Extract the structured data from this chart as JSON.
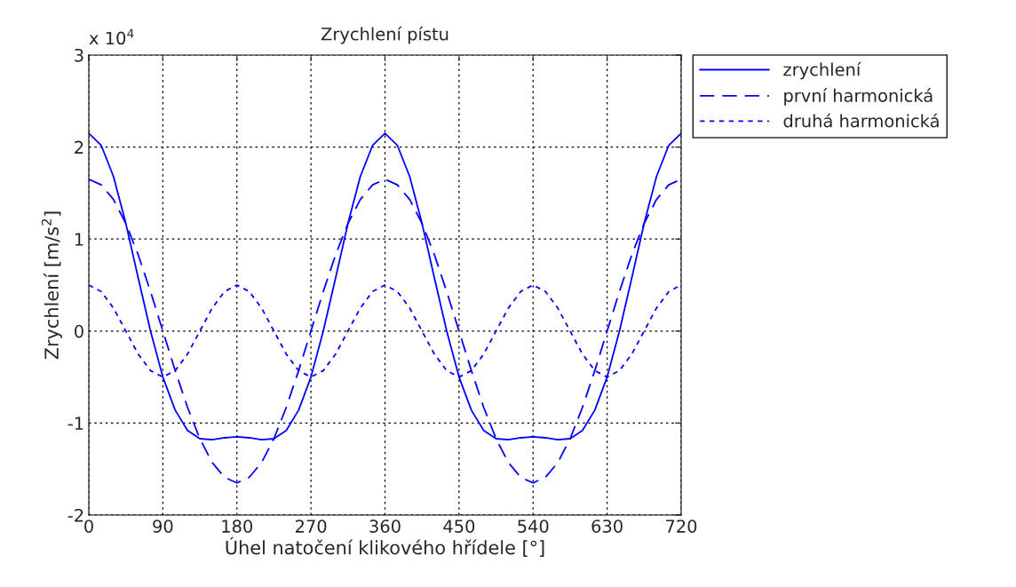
{
  "chart_data": {
    "type": "line",
    "title": "Zrychlení pístu",
    "xlabel": "Úhel natočení klikového hřídele [°]",
    "ylabel": "Zrychlení [m/s$^{2}$]",
    "annotations": [
      "x 10$^{4}$"
    ],
    "x": [
      0,
      15,
      30,
      45,
      60,
      75,
      90,
      105,
      120,
      135,
      150,
      165,
      180,
      195,
      210,
      225,
      240,
      255,
      270,
      285,
      300,
      315,
      330,
      345,
      360,
      375,
      390,
      405,
      420,
      435,
      450,
      465,
      480,
      495,
      510,
      525,
      540,
      555,
      570,
      585,
      600,
      615,
      630,
      645,
      660,
      675,
      690,
      705,
      720
    ],
    "series": [
      {
        "name": "zrychlení",
        "color": "#0000ff",
        "line_style": "solid",
        "values": [
          2.15,
          2.02,
          1.68,
          1.17,
          0.58,
          0,
          -0.5,
          -0.86,
          -1.08,
          -1.17,
          -1.18,
          -1.16,
          -1.15,
          -1.16,
          -1.18,
          -1.17,
          -1.08,
          -0.86,
          -0.5,
          0,
          0.58,
          1.17,
          1.68,
          2.02,
          2.15,
          2.02,
          1.68,
          1.17,
          0.58,
          0,
          -0.5,
          -0.86,
          -1.08,
          -1.17,
          -1.18,
          -1.16,
          -1.15,
          -1.16,
          -1.18,
          -1.17,
          -1.08,
          -0.86,
          -0.5,
          0,
          0.58,
          1.17,
          1.68,
          2.02,
          2.15
        ]
      },
      {
        "name": "první harmonická",
        "color": "#0000ff",
        "line_style": "dashed",
        "values": [
          1.65,
          1.59,
          1.43,
          1.17,
          0.83,
          0.43,
          0,
          -0.43,
          -0.83,
          -1.17,
          -1.43,
          -1.59,
          -1.65,
          -1.59,
          -1.43,
          -1.17,
          -0.83,
          -0.43,
          0,
          0.43,
          0.83,
          1.17,
          1.43,
          1.59,
          1.65,
          1.59,
          1.43,
          1.17,
          0.83,
          0.43,
          0,
          -0.43,
          -0.83,
          -1.17,
          -1.43,
          -1.59,
          -1.65,
          -1.59,
          -1.43,
          -1.17,
          -0.83,
          -0.43,
          0,
          0.43,
          0.83,
          1.17,
          1.43,
          1.59,
          1.65
        ]
      },
      {
        "name": "druhá harmonická",
        "color": "#0000ff",
        "line_style": "dotted",
        "values": [
          0.5,
          0.43,
          0.25,
          0,
          -0.25,
          -0.43,
          -0.5,
          -0.43,
          -0.25,
          0,
          0.25,
          0.43,
          0.5,
          0.43,
          0.25,
          0,
          -0.25,
          -0.43,
          -0.5,
          -0.43,
          -0.25,
          0,
          0.25,
          0.43,
          0.5,
          0.43,
          0.25,
          0,
          -0.25,
          -0.43,
          -0.5,
          -0.43,
          -0.25,
          0,
          0.25,
          0.43,
          0.5,
          0.43,
          0.25,
          0,
          -0.25,
          -0.43,
          -0.5,
          -0.43,
          -0.25,
          0,
          0.25,
          0.43,
          0.5
        ]
      }
    ],
    "xlim": [
      0,
      720
    ],
    "xticks": [
      0,
      90,
      180,
      270,
      360,
      450,
      540,
      630,
      720
    ],
    "ylim": [
      -2,
      3
    ],
    "yticks": [
      -2,
      -1,
      0,
      1,
      2,
      3
    ],
    "grid": true,
    "legend": "top right"
  }
}
